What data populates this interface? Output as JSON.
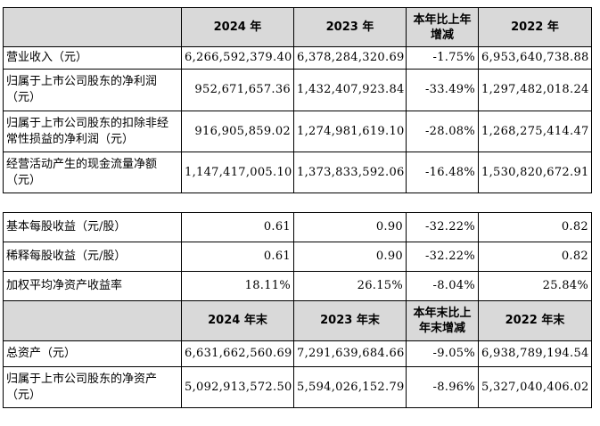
{
  "table1": {
    "headers": [
      "",
      "2024 年",
      "2023 年",
      "本年比上年增减",
      "2022 年"
    ],
    "rows": [
      {
        "label": "营业收入（元）",
        "v2024": "6,266,592,379.40",
        "v2023": "6,378,284,320.69",
        "change": "-1.75%",
        "v2022": "6,953,640,738.88"
      },
      {
        "label": "归属于上市公司股东的净利润（元）",
        "v2024": "952,671,657.36",
        "v2023": "1,432,407,923.84",
        "change": "-33.49%",
        "v2022": "1,297,482,018.24"
      },
      {
        "label": "归属于上市公司股东的扣除非经常性损益的净利润（元）",
        "v2024": "916,905,859.02",
        "v2023": "1,274,981,619.10",
        "change": "-28.08%",
        "v2022": "1,268,275,414.47"
      },
      {
        "label": "经营活动产生的现金流量净额（元）",
        "v2024": "1,147,417,005.10",
        "v2023": "1,373,833,592.06",
        "change": "-16.48%",
        "v2022": "1,530,820,672.91"
      }
    ]
  },
  "table2": {
    "rows_top": [
      {
        "label": "基本每股收益（元/股）",
        "v2024": "0.61",
        "v2023": "0.90",
        "change": "-32.22%",
        "v2022": "0.82"
      },
      {
        "label": "稀释每股收益（元/股）",
        "v2024": "0.61",
        "v2023": "0.90",
        "change": "-32.22%",
        "v2022": "0.82"
      },
      {
        "label": "加权平均净资产收益率",
        "v2024": "18.11%",
        "v2023": "26.15%",
        "change": "-8.04%",
        "v2022": "25.84%"
      }
    ],
    "headers": [
      "",
      "2024 年末",
      "2023 年末",
      "本年末比上年末增减",
      "2022 年末"
    ],
    "rows_bottom": [
      {
        "label": "总资产（元）",
        "v2024": "6,631,662,560.69",
        "v2023": "7,291,639,684.66",
        "change": "-9.05%",
        "v2022": "6,938,789,194.54"
      },
      {
        "label": "归属于上市公司股东的净资产（元）",
        "v2024": "5,092,913,572.50",
        "v2023": "5,594,026,152.79",
        "change": "-8.96%",
        "v2022": "5,327,040,406.02"
      }
    ]
  }
}
